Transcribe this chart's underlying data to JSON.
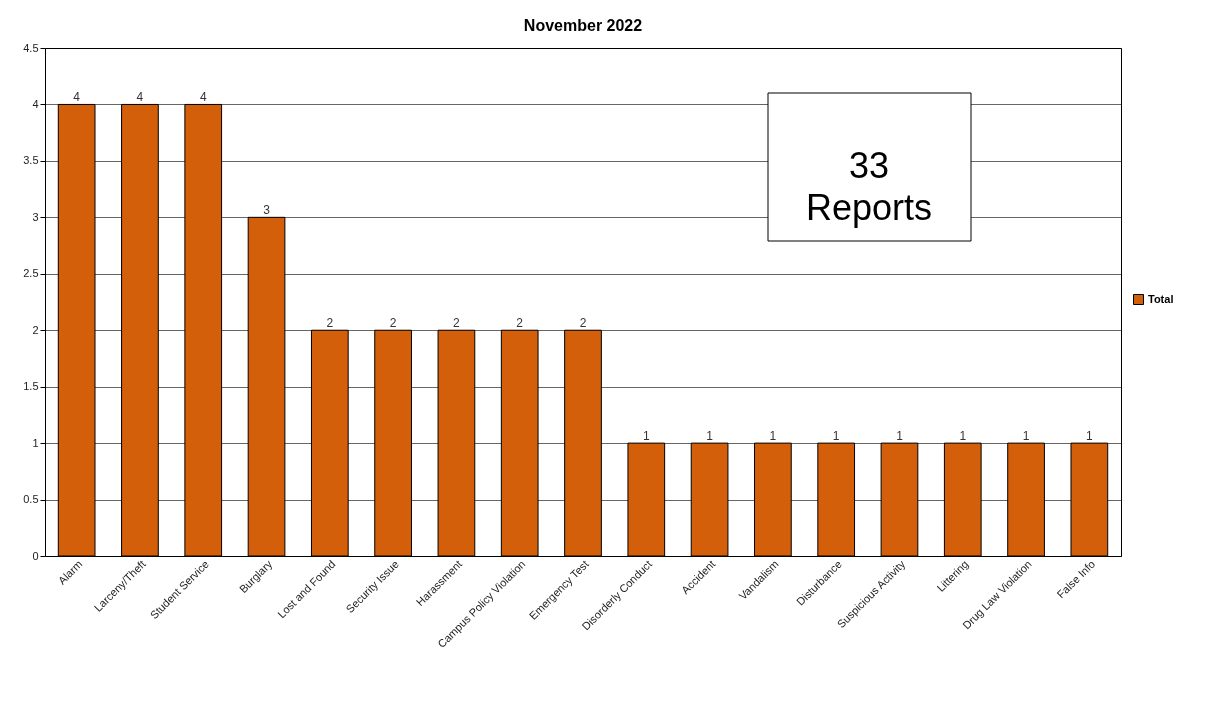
{
  "chart_data": {
    "type": "bar",
    "title": "November 2022",
    "categories": [
      "Alarm",
      "Larceny/Theft",
      "Student Service",
      "Burglary",
      "Lost and Found",
      "Security Issue",
      "Harassment",
      "Campus Policy Violation",
      "Emergency Test",
      "Disorderly Conduct",
      "Accident",
      "Vandalism",
      "Disturbance",
      "Suspicious Activity",
      "Littering",
      "Drug Law Violation",
      "False Info"
    ],
    "series": [
      {
        "name": "Total",
        "color": "#d35f0a",
        "values": [
          4,
          4,
          4,
          3,
          2,
          2,
          2,
          2,
          2,
          1,
          1,
          1,
          1,
          1,
          1,
          1,
          1
        ]
      }
    ],
    "ylim": [
      0,
      4.5
    ],
    "yticks": [
      0,
      0.5,
      1,
      1.5,
      2,
      2.5,
      3,
      3.5,
      4,
      4.5
    ],
    "grid": "y",
    "legend": "right",
    "data_labels": true,
    "annotations": [
      "33\nReports"
    ]
  }
}
